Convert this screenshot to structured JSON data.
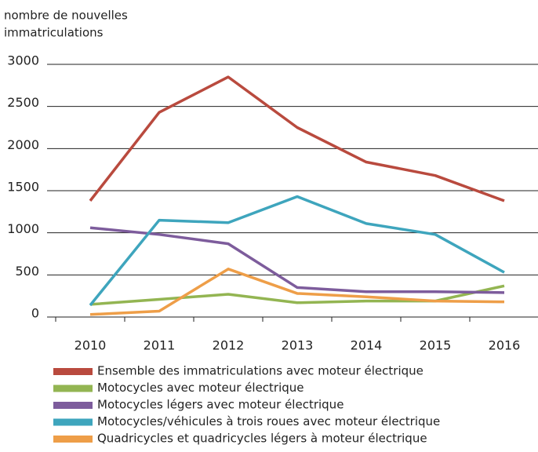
{
  "chart_data": {
    "type": "line",
    "y_label": [
      "nombre de nouvelles",
      "immatriculations"
    ],
    "categories": [
      "2010",
      "2011",
      "2012",
      "2013",
      "2014",
      "2015",
      "2016"
    ],
    "series": [
      {
        "name": "Ensemble des immatriculations avec moteur électrique",
        "color": "#b94a3e",
        "values": [
          1380,
          2430,
          2850,
          2250,
          1840,
          1680,
          1380
        ]
      },
      {
        "name": "Motocycles avec moteur électrique",
        "color": "#93b552",
        "values": [
          150,
          210,
          270,
          170,
          190,
          190,
          370
        ]
      },
      {
        "name": "Motocycles légers avec moteur électrique",
        "color": "#7d5c9c",
        "values": [
          1060,
          980,
          870,
          350,
          300,
          300,
          290
        ]
      },
      {
        "name": "Motocycles/véhicules à trois roues avec moteur électrique",
        "color": "#3ea5bd",
        "values": [
          140,
          1150,
          1120,
          1430,
          1110,
          980,
          530
        ]
      },
      {
        "name": "Quadricycles et quadricycles légers à moteur électrique",
        "color": "#ee9e48",
        "values": [
          30,
          70,
          570,
          280,
          240,
          190,
          180
        ]
      }
    ],
    "ylim": [
      0,
      3000
    ],
    "yticks": [
      0,
      500,
      1000,
      1500,
      2000,
      2500,
      3000
    ],
    "grid": true
  }
}
